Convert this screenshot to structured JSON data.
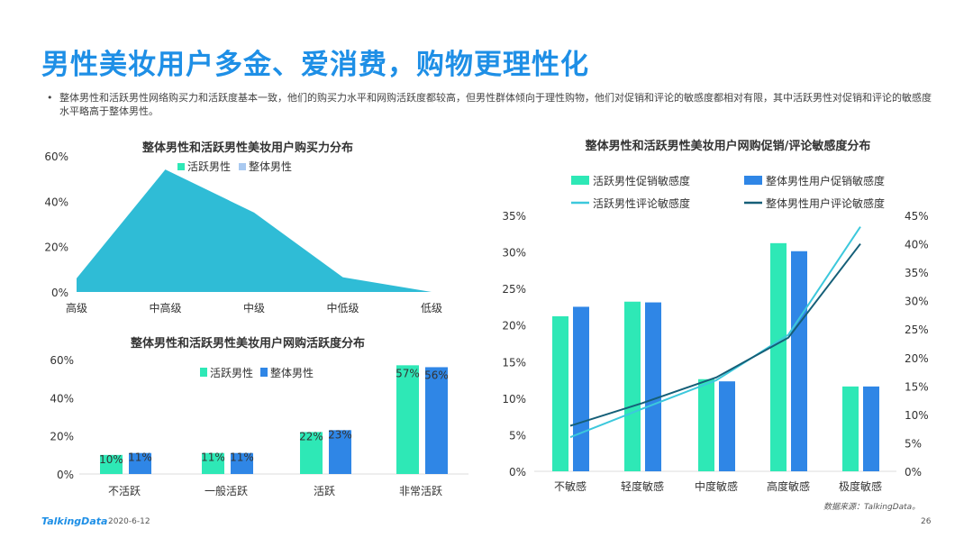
{
  "title": "男性美妆用户多金、爱消费，购物更理性化",
  "description": "整体男性和活跃男性网络购买力和活跃度基本一致，他们的购买力水平和网购活跃度都较高，但男性群体倾向于理性购物，他们对促销和评论的敏感度都相对有限，其中活跃男性对促销和评论的敏感度水平略高于整体男性。",
  "footer": {
    "logo": "TalkingData",
    "date": "2020-6-12",
    "page": "26",
    "source": "数据来源：TalkingData。"
  },
  "colors": {
    "green": "#2ee8b6",
    "blue": "#2f86e6",
    "lightblue": "#a9c9f0",
    "area": "#2fbcd6",
    "cyanline": "#3cc8dc",
    "darkline": "#155f78"
  },
  "chart_data": [
    {
      "type": "area",
      "title": "整体男性和活跃男性美妆用户购买力分布",
      "legend": [
        "活跃男性",
        "整体男性"
      ],
      "categories": [
        "高级",
        "中高级",
        "中级",
        "中低级",
        "低级"
      ],
      "values": [
        6,
        54,
        35,
        6.5,
        0
      ],
      "yticks": [
        "0%",
        "20%",
        "40%",
        "60%"
      ],
      "ylim": [
        0,
        60
      ]
    },
    {
      "type": "bar",
      "title": "整体男性和活跃男性美妆用户网购活跃度分布",
      "legend": [
        "活跃男性",
        "整体男性"
      ],
      "categories": [
        "不活跃",
        "一般活跃",
        "活跃",
        "非常活跃"
      ],
      "series": [
        {
          "name": "活跃男性",
          "values": [
            10,
            11,
            22,
            57
          ],
          "labels": [
            "10%",
            "11%",
            "22%",
            "57%"
          ]
        },
        {
          "name": "整体男性",
          "values": [
            11,
            11,
            23,
            56
          ],
          "labels": [
            "11%",
            "11%",
            "23%",
            "56%"
          ]
        }
      ],
      "yticks": [
        "0%",
        "20%",
        "40%",
        "60%"
      ],
      "ylim": [
        0,
        60
      ]
    },
    {
      "type": "bar+line",
      "title": "整体男性和活跃男性美妆用户网购促销/评论敏感度分布",
      "categories": [
        "不敏感",
        "轻度敏感",
        "中度敏感",
        "高度敏感",
        "极度敏感"
      ],
      "bars": [
        {
          "name": "活跃男性促销敏感度",
          "values": [
            21.2,
            23.2,
            12.6,
            31.2,
            11.6
          ]
        },
        {
          "name": "整体男性用户促销敏感度",
          "values": [
            22.5,
            23.1,
            12.3,
            30.1,
            11.6
          ]
        }
      ],
      "lines": [
        {
          "name": "活跃男性评论敏感度",
          "values": [
            6,
            11,
            16,
            24,
            43
          ]
        },
        {
          "name": "整体男性用户评论敏感度",
          "values": [
            8,
            12,
            16.5,
            23.5,
            40
          ]
        }
      ],
      "yticks_left": [
        "0%",
        "5%",
        "10%",
        "15%",
        "20%",
        "25%",
        "30%",
        "35%"
      ],
      "ylim_left": [
        0,
        35
      ],
      "yticks_right": [
        "0%",
        "5%",
        "10%",
        "15%",
        "20%",
        "25%",
        "30%",
        "35%",
        "40%",
        "45%"
      ],
      "ylim_right": [
        0,
        45
      ]
    }
  ]
}
